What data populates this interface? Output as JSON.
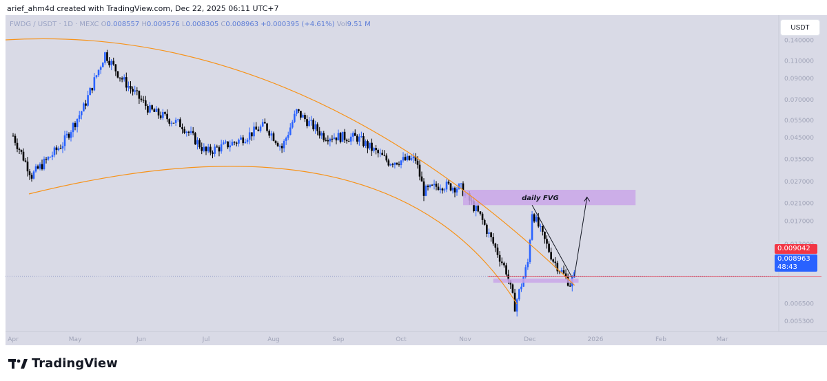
{
  "caption": "arief_ahm4d created with TradingView.com, Dec 22, 2025 06:11 UTC+7",
  "symbol": {
    "name": "FWDG / USDT · 1D · MEXC",
    "open_label": "O",
    "open": "0.008557",
    "high_label": "H",
    "high": "0.009576",
    "low_label": "L",
    "low": "0.008305",
    "close_label": "C",
    "close": "0.008963",
    "change": "+0.000395 (+4.61%)",
    "vol_label": "Vol",
    "vol": "9.51 M"
  },
  "currency_button": "USDT",
  "price_tags": {
    "red": "0.009042",
    "blue": "0.008963",
    "countdown": "48:43"
  },
  "annotation": "daily FVG",
  "brand": "TradingView",
  "colors": {
    "background": "#d9dae6",
    "up_candle": "#2962ff",
    "down_candle": "#000000",
    "arc": "#f7931a",
    "fvg_box": "#c9a6e8",
    "red_tag": "#f23645",
    "blue_tag": "#2962ff"
  },
  "chart_data": {
    "type": "candlestick",
    "scale": "log",
    "x_ticks": [
      "Apr",
      "May",
      "Jun",
      "Jul",
      "Aug",
      "Sep",
      "Oct",
      "Nov",
      "Dec",
      "2026",
      "Feb",
      "Mar"
    ],
    "y_ticks": [
      "0.140000",
      "0.110000",
      "0.090000",
      "0.070000",
      "0.055000",
      "0.045000",
      "0.035000",
      "0.027000",
      "0.021000",
      "0.017000",
      "0.013000",
      "0.010000",
      "0.006500",
      "0.005300"
    ],
    "ylim": [
      0.0047,
      0.16
    ],
    "last_price": 0.008963,
    "price_path": [
      {
        "date": "2025-04-01",
        "price": 0.046
      },
      {
        "date": "2025-04-10",
        "price": 0.029
      },
      {
        "date": "2025-04-25",
        "price": 0.042
      },
      {
        "date": "2025-05-05",
        "price": 0.064
      },
      {
        "date": "2025-05-15",
        "price": 0.12
      },
      {
        "date": "2025-05-22",
        "price": 0.092
      },
      {
        "date": "2025-06-05",
        "price": 0.062
      },
      {
        "date": "2025-06-20",
        "price": 0.052
      },
      {
        "date": "2025-07-01",
        "price": 0.038
      },
      {
        "date": "2025-07-15",
        "price": 0.043
      },
      {
        "date": "2025-07-28",
        "price": 0.052
      },
      {
        "date": "2025-08-05",
        "price": 0.04
      },
      {
        "date": "2025-08-12",
        "price": 0.061
      },
      {
        "date": "2025-08-25",
        "price": 0.046
      },
      {
        "date": "2025-09-10",
        "price": 0.045
      },
      {
        "date": "2025-09-25",
        "price": 0.034
      },
      {
        "date": "2025-10-08",
        "price": 0.035
      },
      {
        "date": "2025-10-12",
        "price": 0.024
      },
      {
        "date": "2025-10-20",
        "price": 0.026
      },
      {
        "date": "2025-10-30",
        "price": 0.025
      },
      {
        "date": "2025-11-08",
        "price": 0.018
      },
      {
        "date": "2025-11-20",
        "price": 0.0095
      },
      {
        "date": "2025-11-24",
        "price": 0.0063
      },
      {
        "date": "2025-11-30",
        "price": 0.0105
      },
      {
        "date": "2025-12-02",
        "price": 0.019
      },
      {
        "date": "2025-12-12",
        "price": 0.0108
      },
      {
        "date": "2025-12-20",
        "price": 0.0082
      },
      {
        "date": "2025-12-22",
        "price": 0.008963
      }
    ],
    "annotations": [
      {
        "type": "zone",
        "label": "daily FVG",
        "from": "2025-10-31",
        "to": "2026-01-20",
        "low": 0.0205,
        "high": 0.0245
      },
      {
        "type": "zone",
        "from": "2025-11-14",
        "to": "2025-12-24",
        "low": 0.0083,
        "high": 0.0087
      },
      {
        "type": "arc",
        "color": "#f7931a"
      },
      {
        "type": "arc",
        "color": "#f7931a"
      },
      {
        "type": "trendline",
        "from_date": "2025-12-02",
        "from_price": 0.0205,
        "to_date": "2025-12-21",
        "to_price": 0.0088
      },
      {
        "type": "arrow",
        "from_date": "2025-12-22",
        "from_price": 0.0089,
        "to_date": "2025-12-28",
        "to_price": 0.0225
      }
    ]
  }
}
